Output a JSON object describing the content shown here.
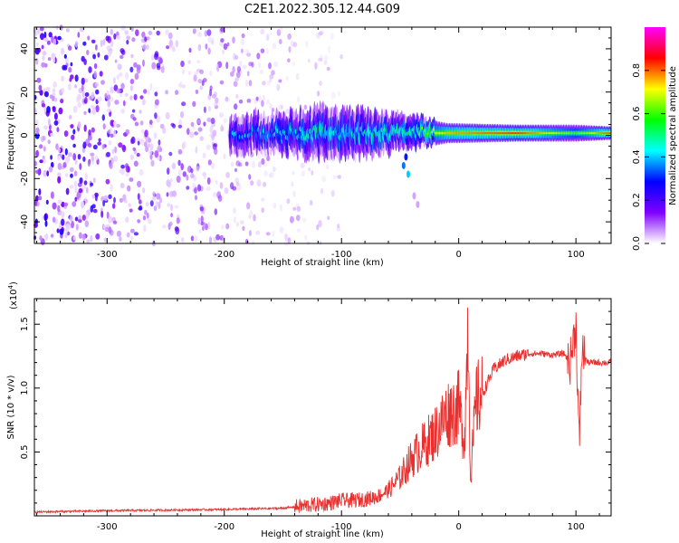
{
  "title": "C2E1.2022.305.12.44.G09",
  "colors": {
    "snr_line": "#e8302e",
    "background": "#ffffff",
    "axis": "#000000"
  },
  "chart_data": [
    {
      "type": "heatmap",
      "xlabel": "Height of straight line (km)",
      "ylabel": "Frequency (Hz)",
      "xlim": [
        -362,
        130
      ],
      "ylim": [
        -50,
        50
      ],
      "xticks": [
        -300,
        -200,
        -100,
        0,
        100
      ],
      "xtick_labels": [
        "-300",
        "-200",
        "-100",
        "0",
        "100"
      ],
      "yticks": [
        -40,
        -20,
        0,
        20,
        40
      ],
      "ytick_labels": [
        "-40",
        "-20",
        "0",
        "20",
        "40"
      ],
      "colorbar": {
        "label": "Normalized spectral amplitude",
        "range": [
          0,
          1
        ],
        "ticks": [
          0.0,
          0.2,
          0.4,
          0.6,
          0.8
        ],
        "tick_labels": [
          "0.0",
          "0.2",
          "0.4",
          "0.6",
          "0.8"
        ],
        "colormap": [
          "#ffffff",
          "#7f00ff",
          "#0000ff",
          "#00ffff",
          "#00ff00",
          "#ffff00",
          "#ff0000",
          "#ff00ff"
        ]
      },
      "signal_band": {
        "frequency_center_hz": 1,
        "scatter_noise_x_range": [
          -362,
          -100
        ],
        "band_segments": [
          {
            "x": -195,
            "halfwidth_hz": 6,
            "amplitude": 0.35
          },
          {
            "x": -150,
            "halfwidth_hz": 6,
            "amplitude": 0.4
          },
          {
            "x": -120,
            "halfwidth_hz": 8,
            "amplitude": 0.45
          },
          {
            "x": -80,
            "halfwidth_hz": 7,
            "amplitude": 0.45
          },
          {
            "x": -40,
            "halfwidth_hz": 5,
            "amplitude": 0.5
          },
          {
            "x": -10,
            "halfwidth_hz": 3,
            "amplitude": 0.75
          },
          {
            "x": 50,
            "halfwidth_hz": 2.5,
            "amplitude": 0.85
          },
          {
            "x": 100,
            "halfwidth_hz": 2.5,
            "amplitude": 0.6
          },
          {
            "x": 130,
            "halfwidth_hz": 2,
            "amplitude": 0.85
          }
        ]
      }
    },
    {
      "type": "line",
      "xlabel": "Height of straight line (km)",
      "ylabel": "SNR (10 * v/v)",
      "y_multiplier_label": "(x10",
      "y_multiplier_exp": "4",
      "y_multiplier_close": ")",
      "xlim": [
        -362,
        130
      ],
      "ylim": [
        0,
        1.7
      ],
      "xticks": [
        -300,
        -200,
        -100,
        0,
        100
      ],
      "xtick_labels": [
        "-300",
        "-200",
        "-100",
        "0",
        "100"
      ],
      "yticks": [
        0.5,
        1.0,
        1.5
      ],
      "ytick_labels": [
        "0.5",
        "1.0",
        "1.5"
      ],
      "series": [
        {
          "x": [
            -362,
            -300,
            -250,
            -200,
            -150,
            -130,
            -110,
            -100,
            -90,
            -80,
            -70,
            -60,
            -50,
            -40,
            -30,
            -20,
            -10,
            0,
            5,
            8,
            10,
            15,
            20,
            25,
            30,
            40,
            50,
            60,
            70,
            80,
            90,
            95,
            100,
            103,
            105,
            110,
            120,
            130
          ],
          "y": [
            0.03,
            0.04,
            0.045,
            0.05,
            0.06,
            0.08,
            0.1,
            0.12,
            0.12,
            0.13,
            0.15,
            0.2,
            0.3,
            0.45,
            0.55,
            0.65,
            0.8,
            0.85,
            0.6,
            1.55,
            0.3,
            0.9,
            0.95,
            1.05,
            1.15,
            1.22,
            1.25,
            1.27,
            1.27,
            1.26,
            1.27,
            1.2,
            1.5,
            0.5,
            1.3,
            1.2,
            1.2,
            1.2
          ]
        }
      ]
    }
  ]
}
